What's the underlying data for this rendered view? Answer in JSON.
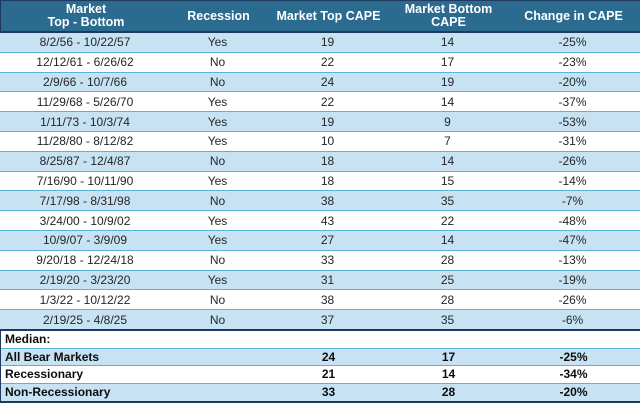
{
  "colors": {
    "header_bg": "#2B6B8F",
    "header_text": "#FFFFFF",
    "row_alt_bg": "#C7E3F3",
    "separator": "#58B3DC",
    "dark_border": "#1E3A5F",
    "body_text": "#262626",
    "summary_text": "#0D0D0D"
  },
  "chart_data": {
    "type": "table",
    "header": {
      "col1_line1": "Market",
      "col1_line2": "Top - Bottom",
      "col2": "Recession",
      "col3": "Market Top CAPE",
      "col4": "Market Bottom CAPE",
      "col5": "Change in CAPE"
    },
    "rows": [
      {
        "period": "8/2/56 - 10/22/57",
        "recession": "Yes",
        "top_cape": "19",
        "bottom_cape": "14",
        "change": "-25%"
      },
      {
        "period": "12/12/61 - 6/26/62",
        "recession": "No",
        "top_cape": "22",
        "bottom_cape": "17",
        "change": "-23%"
      },
      {
        "period": "2/9/66 - 10/7/66",
        "recession": "No",
        "top_cape": "24",
        "bottom_cape": "19",
        "change": "-20%"
      },
      {
        "period": "11/29/68 - 5/26/70",
        "recession": "Yes",
        "top_cape": "22",
        "bottom_cape": "14",
        "change": "-37%"
      },
      {
        "period": "1/11/73 - 10/3/74",
        "recession": "Yes",
        "top_cape": "19",
        "bottom_cape": "9",
        "change": "-53%"
      },
      {
        "period": "11/28/80 - 8/12/82",
        "recession": "Yes",
        "top_cape": "10",
        "bottom_cape": "7",
        "change": "-31%"
      },
      {
        "period": "8/25/87 - 12/4/87",
        "recession": "No",
        "top_cape": "18",
        "bottom_cape": "14",
        "change": "-26%"
      },
      {
        "period": "7/16/90 - 10/11/90",
        "recession": "Yes",
        "top_cape": "18",
        "bottom_cape": "15",
        "change": "-14%"
      },
      {
        "period": "7/17/98 - 8/31/98",
        "recession": "No",
        "top_cape": "38",
        "bottom_cape": "35",
        "change": "-7%"
      },
      {
        "period": "3/24/00 - 10/9/02",
        "recession": "Yes",
        "top_cape": "43",
        "bottom_cape": "22",
        "change": "-48%"
      },
      {
        "period": "10/9/07 - 3/9/09",
        "recession": "Yes",
        "top_cape": "27",
        "bottom_cape": "14",
        "change": "-47%"
      },
      {
        "period": "9/20/18 - 12/24/18",
        "recession": "No",
        "top_cape": "33",
        "bottom_cape": "28",
        "change": "-13%"
      },
      {
        "period": "2/19/20 - 3/23/20",
        "recession": "Yes",
        "top_cape": "31",
        "bottom_cape": "25",
        "change": "-19%"
      },
      {
        "period": "1/3/22 - 10/12/22",
        "recession": "No",
        "top_cape": "38",
        "bottom_cape": "28",
        "change": "-26%"
      },
      {
        "period": "2/19/25 - 4/8/25",
        "recession": "No",
        "top_cape": "37",
        "bottom_cape": "35",
        "change": "-6%"
      }
    ],
    "median_label": "Median:",
    "summary_rows": [
      {
        "label": "All Bear Markets",
        "top_cape": "24",
        "bottom_cape": "17",
        "change": "-25%"
      },
      {
        "label": "Recessionary",
        "top_cape": "21",
        "bottom_cape": "14",
        "change": "-34%"
      },
      {
        "label": "Non-Recessionary",
        "top_cape": "33",
        "bottom_cape": "28",
        "change": "-20%"
      }
    ]
  }
}
